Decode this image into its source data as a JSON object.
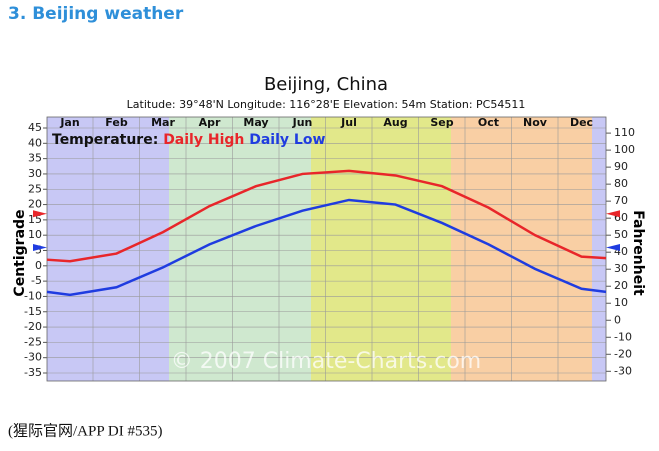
{
  "header": "3. Beijing weather",
  "chart_data": {
    "type": "line",
    "title": "Beijing,  China",
    "subtitle": "Latitude: 39°48'N   Longitude: 116°28'E   Elevation: 54m   Station: PC54511",
    "categories": [
      null,
      "Jan",
      "Feb",
      "Mar",
      "Apr",
      "May",
      "Jun",
      "Jul",
      "Aug",
      "Sep",
      "Oct",
      "Nov",
      "Dec",
      null
    ],
    "legend_title": "Temperature:",
    "series": [
      {
        "name": "Daily High",
        "color": "#e8262a",
        "values": [
          2,
          1.5,
          4,
          11,
          19.5,
          26,
          30,
          31,
          29.5,
          26,
          19,
          10,
          3,
          2.5
        ]
      },
      {
        "name": "Daily Low",
        "color": "#1f3ce0",
        "values": [
          -8.5,
          -9.5,
          -7,
          -0.5,
          7,
          13,
          18,
          21.5,
          20,
          14,
          7,
          -1,
          -7.5,
          -8.5
        ]
      }
    ],
    "annual_means": [
      {
        "color": "#e8262a",
        "value": 17
      },
      {
        "color": "#1f3ce0",
        "value": 6
      }
    ],
    "ylabel": "Centigrade",
    "y2label": "Fahrenheit",
    "ylim": [
      -35,
      45
    ],
    "yticks": [
      -35,
      -30,
      -25,
      -20,
      -15,
      -10,
      -5,
      0,
      5,
      10,
      15,
      20,
      25,
      30,
      35,
      40,
      45
    ],
    "y2lim": [
      -31,
      113
    ],
    "y2ticks": [
      -30,
      -20,
      -10,
      0,
      10,
      20,
      30,
      40,
      50,
      60,
      70,
      80,
      90,
      100,
      110
    ],
    "grid": true,
    "watermark": "© 2007 Climate-Charts.com"
  },
  "caption": "(猩际官网/APP DI #535)"
}
